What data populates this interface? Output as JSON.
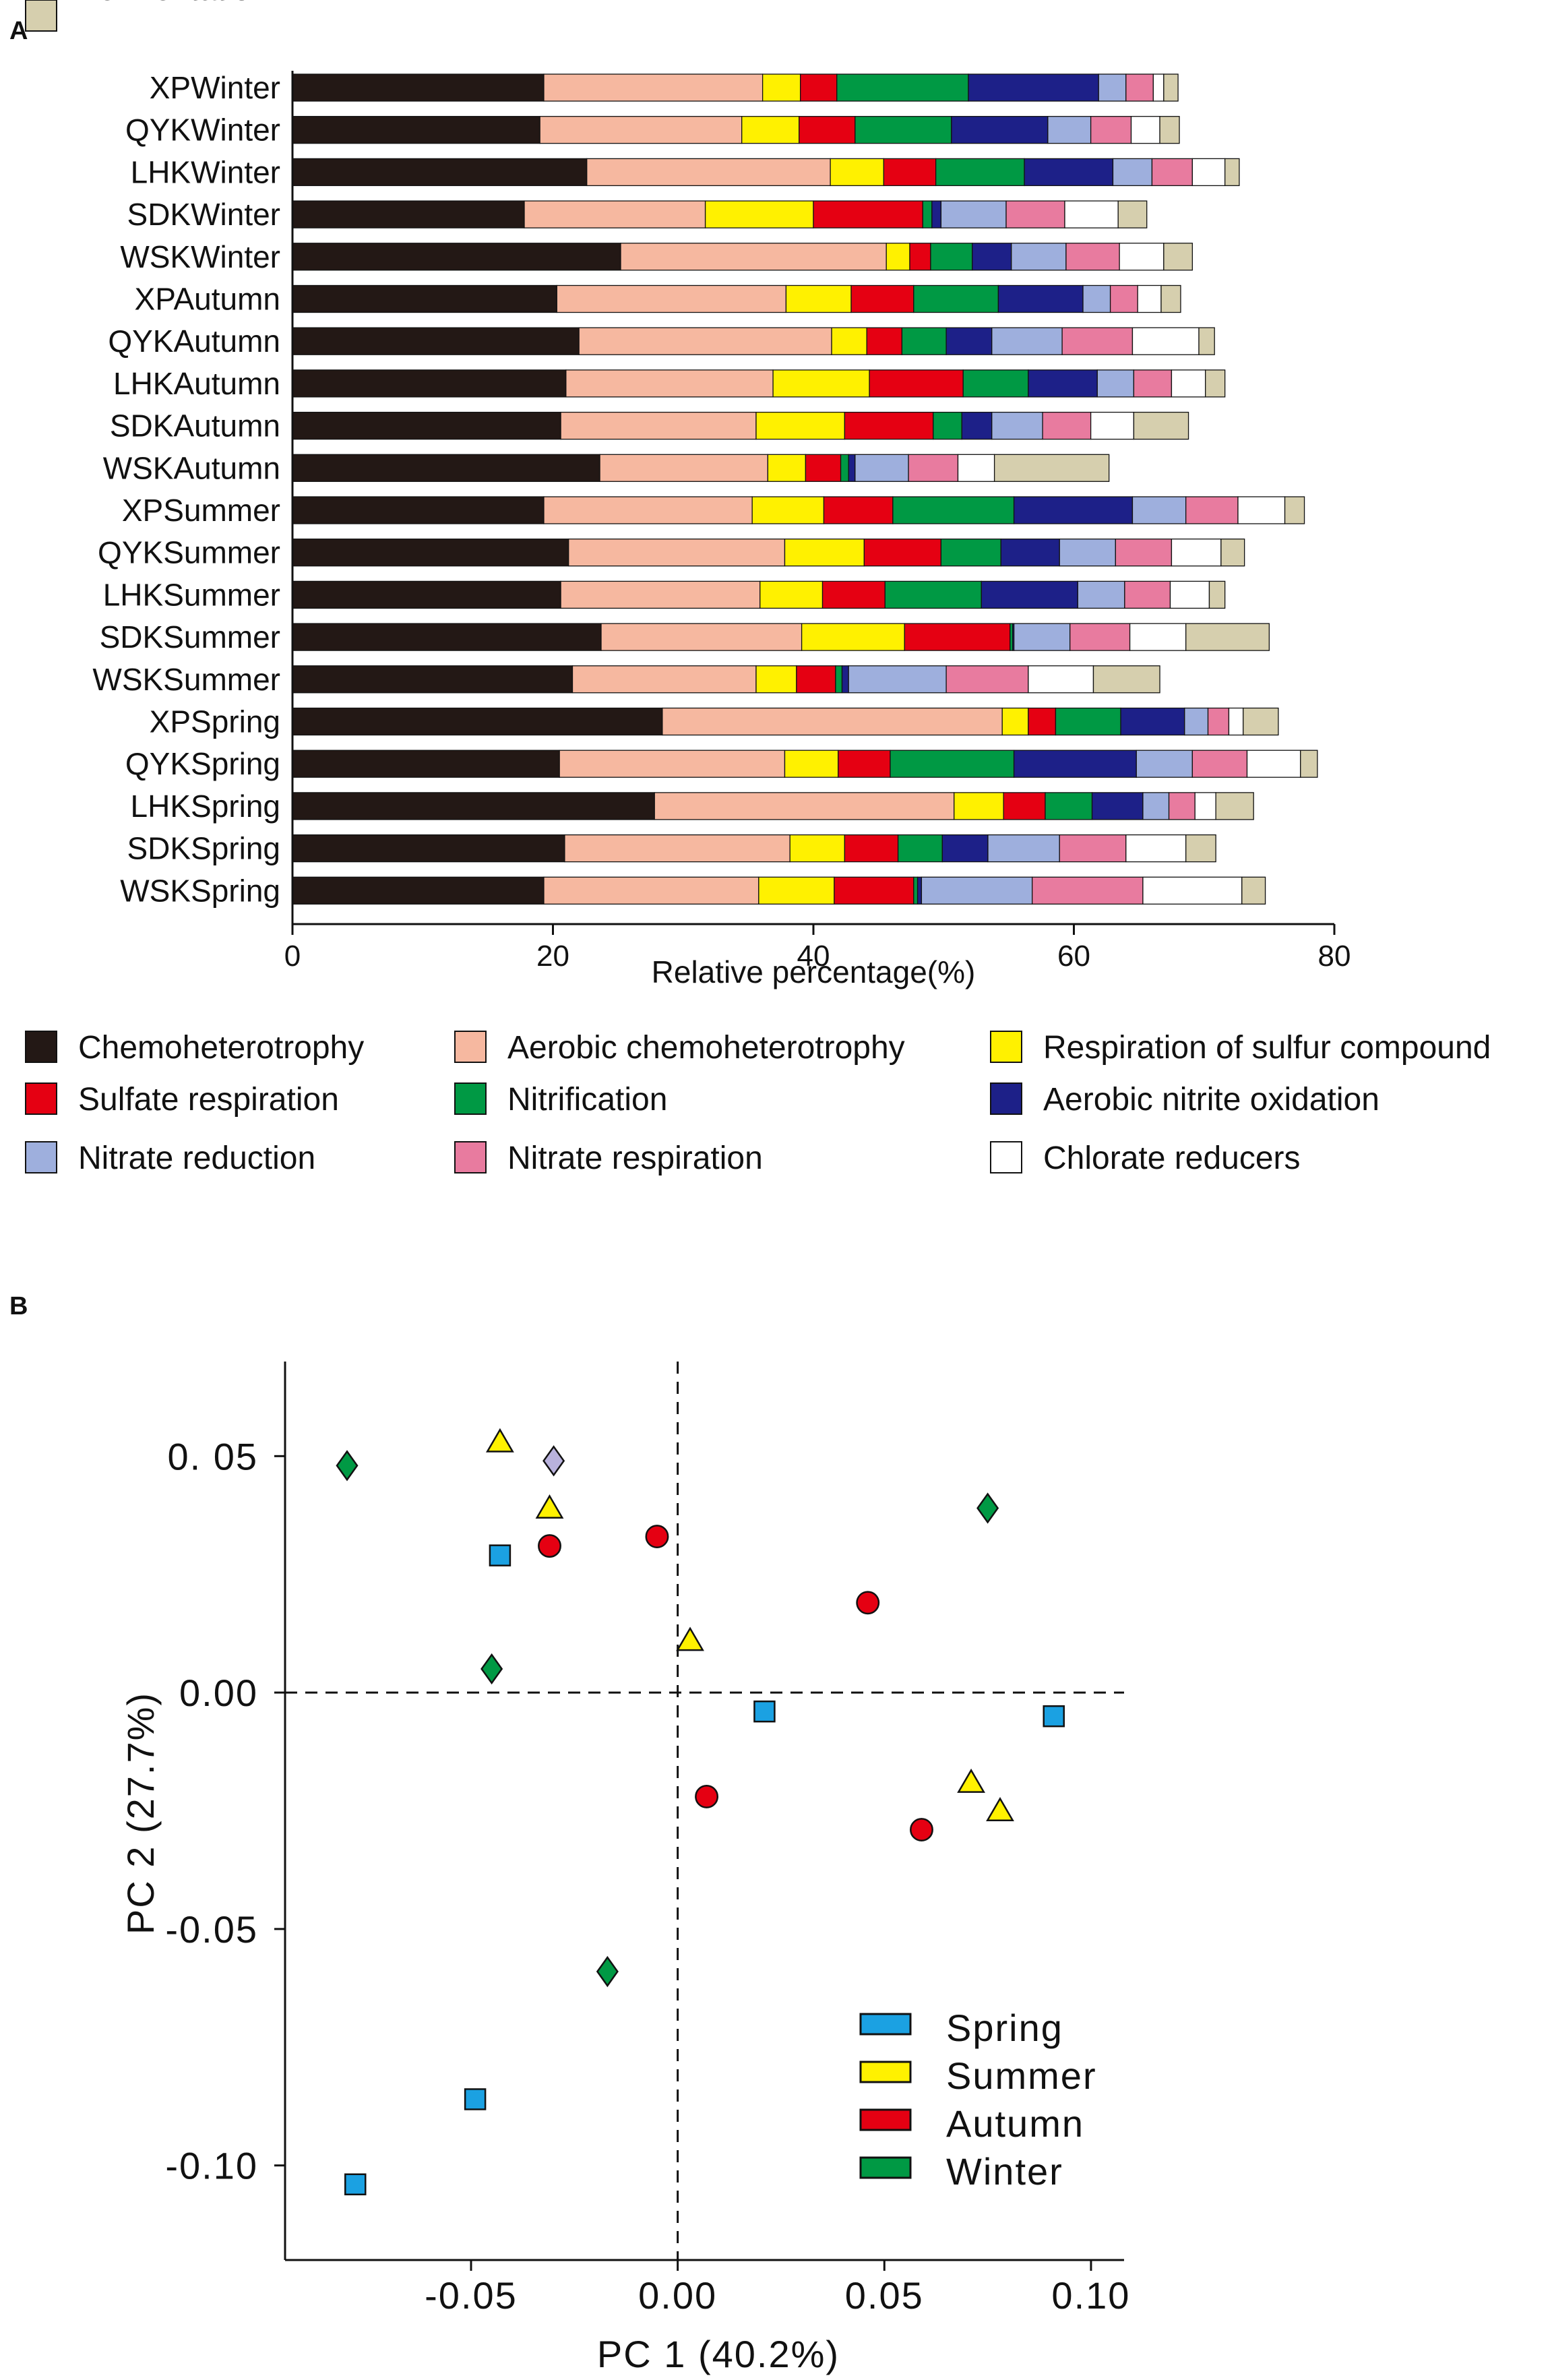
{
  "chart_data": [
    {
      "panel": "A",
      "type": "bar",
      "orientation": "horizontal",
      "stacked": true,
      "xlabel": "Relative percentage(%)",
      "xlim": [
        0,
        80
      ],
      "xticks": [
        0,
        20,
        40,
        60,
        80
      ],
      "categories": [
        "XPWinter",
        "QYKWinter",
        "LHKWinter",
        "SDKWinter",
        "WSKWinter",
        "XPAutumn",
        "QYKAutumn",
        "LHKAutumn",
        "SDKAutumn",
        "WSKAutumn",
        "XPSummer",
        "QYKSummer",
        "LHKSummer",
        "SDKSummer",
        "WSKSummer",
        "XPSpring",
        "QYKSpring",
        "LHKSpring",
        "SDKSpring",
        "WSKSpring"
      ],
      "legend": {
        "placement": "bottom"
      },
      "series": [
        {
          "name": "Chemoheterotrophy",
          "color": "#231815",
          "values": [
            19.3,
            19,
            22.6,
            17.8,
            25.2,
            20.3,
            22,
            21,
            20.6,
            23.6,
            19.3,
            21.2,
            20.6,
            23.7,
            21.5,
            28.4,
            20.5,
            27.8,
            20.9,
            19.3
          ]
        },
        {
          "name": "Aerobic chemoheterotrophy",
          "color": "#f6b8a0",
          "values": [
            16.8,
            15.5,
            18.7,
            13.9,
            20.4,
            17.6,
            19.4,
            15.9,
            15,
            12.9,
            16,
            16.6,
            15.3,
            15.4,
            14.1,
            26.1,
            17.3,
            23,
            17.3,
            16.5
          ]
        },
        {
          "name": "Respiration of sulfur compound",
          "color": "#fff100",
          "values": [
            2.9,
            4.4,
            4.1,
            8.3,
            1.8,
            5,
            2.7,
            7.4,
            6.8,
            2.9,
            5.5,
            6.1,
            4.8,
            7.9,
            3.1,
            2,
            4.1,
            3.8,
            4.2,
            5.8
          ]
        },
        {
          "name": "Sulfate respiration",
          "color": "#e50012",
          "values": [
            2.8,
            4.3,
            4,
            8.4,
            1.6,
            4.8,
            2.7,
            7.2,
            6.8,
            2.7,
            5.3,
            5.9,
            4.8,
            8.1,
            3,
            2.1,
            4,
            3.2,
            4.1,
            6.1
          ]
        },
        {
          "name": "Nitrification",
          "color": "#009944",
          "values": [
            10.1,
            7.4,
            6.8,
            0.7,
            3.2,
            6.5,
            3.4,
            5,
            2.2,
            0.6,
            9.3,
            4.6,
            7.4,
            0.2,
            0.5,
            5,
            9.5,
            3.6,
            3.4,
            0.3
          ]
        },
        {
          "name": "Aerobic nitrite oxidation",
          "color": "#1d2088",
          "values": [
            10,
            7.4,
            6.8,
            0.7,
            3,
            6.5,
            3.5,
            5.3,
            2.3,
            0.5,
            9.1,
            4.5,
            7.4,
            0.1,
            0.5,
            4.9,
            9.4,
            3.9,
            3.5,
            0.3
          ]
        },
        {
          "name": "Nitrate reduction",
          "color": "#9eafdd",
          "values": [
            2.1,
            3.3,
            3,
            5,
            4.2,
            2.1,
            5.4,
            2.8,
            3.9,
            4.1,
            4.1,
            4.3,
            3.6,
            4.3,
            7.5,
            1.8,
            4.3,
            2,
            5.5,
            8.5
          ]
        },
        {
          "name": "Nitrate respiration",
          "color": "#e87b9f",
          "values": [
            2.1,
            3.1,
            3.1,
            4.5,
            4.1,
            2.1,
            5.4,
            2.9,
            3.7,
            3.8,
            4,
            4.3,
            3.5,
            4.6,
            6.3,
            1.6,
            4.2,
            2,
            5.1,
            8.5
          ]
        },
        {
          "name": "Chlorate reducers",
          "color": "#ffffff",
          "values": [
            0.8,
            2.2,
            2.5,
            4.1,
            3.4,
            1.8,
            5.1,
            2.6,
            3.3,
            2.8,
            3.6,
            3.8,
            3,
            4.3,
            5,
            1.1,
            4.1,
            1.6,
            4.6,
            7.6
          ]
        },
        {
          "name": "Fermentation",
          "color": "#d6cfae",
          "values": [
            1.1,
            1.5,
            1.1,
            2.2,
            2.2,
            1.5,
            1.2,
            1.5,
            4.2,
            8.8,
            1.5,
            1.8,
            1.2,
            6.4,
            5.1,
            2.7,
            1.3,
            2.9,
            2.3,
            1.8
          ]
        }
      ]
    },
    {
      "panel": "B",
      "type": "scatter",
      "xlabel": "PC 1 (40.2%)",
      "ylabel": "PC 2 (27.7%)",
      "xlim": [
        -0.095,
        0.108
      ],
      "ylim": [
        -0.12,
        0.07
      ],
      "xticks": [
        -0.05,
        0.0,
        0.05,
        0.1
      ],
      "xtick_labels": [
        "-0.05",
        "0.00",
        "0.05",
        "0.10"
      ],
      "yticks": [
        0.05,
        0.0,
        -0.05,
        -0.1
      ],
      "ytick_labels": [
        "0. 05",
        "0.00",
        "-0.05",
        "-0.10"
      ],
      "reference_lines": {
        "x": 0,
        "y": 0,
        "style": "dashed"
      },
      "legend": {
        "placement": "bottom-right"
      },
      "series": [
        {
          "name": "Spring",
          "marker": "square",
          "color": "#1ba1e2",
          "points": [
            [
              -0.043,
              0.029
            ],
            [
              0.021,
              -0.004
            ],
            [
              0.091,
              -0.005
            ],
            [
              -0.049,
              -0.086
            ],
            [
              -0.078,
              -0.104
            ]
          ]
        },
        {
          "name": "Summer",
          "marker": "triangle",
          "color": "#fff100",
          "points": [
            [
              -0.043,
              0.053
            ],
            [
              -0.031,
              0.039
            ],
            [
              0.003,
              0.011
            ],
            [
              0.071,
              -0.019
            ],
            [
              0.078,
              -0.025
            ]
          ]
        },
        {
          "name": "Autumn",
          "marker": "circle",
          "color": "#e50012",
          "points": [
            [
              -0.031,
              0.031
            ],
            [
              -0.005,
              0.033
            ],
            [
              0.046,
              0.019
            ],
            [
              0.007,
              -0.022
            ],
            [
              0.059,
              -0.029
            ]
          ]
        },
        {
          "name": "Winter",
          "marker": "diamond",
          "color": "#009944",
          "points": [
            [
              -0.08,
              0.048
            ],
            [
              0.075,
              0.039
            ],
            [
              -0.045,
              0.005
            ],
            [
              -0.017,
              -0.059
            ],
            [
              -0.03,
              0.049,
              "#b9b2dd"
            ]
          ]
        }
      ]
    }
  ]
}
